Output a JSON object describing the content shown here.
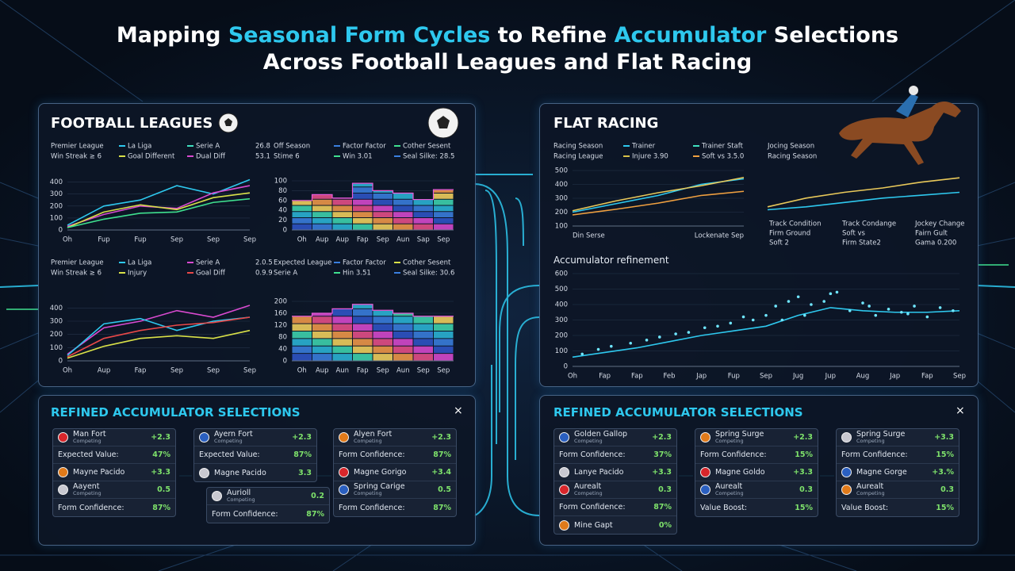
{
  "title": {
    "line1": [
      "Mapping ",
      "Seasonal Form Cycles",
      " to Refine ",
      "Accumulator",
      " Selections"
    ],
    "line2": "Across Football Leagues and Flat Racing"
  },
  "football": {
    "heading": "FOOTBALL LEAGUES",
    "charts": [
      {
        "type": "line",
        "key": [
          [
            {
              "text": "Premier League"
            },
            {
              "text": "La Liga",
              "color": "#2ec8ee"
            },
            {
              "text": "Serie A",
              "color": "#3fe0c0"
            },
            {
              "text": "26.8"
            }
          ],
          [
            {
              "text": "Win Streak ≥ 6"
            },
            {
              "text": "Goal Different",
              "color": "#d8e048"
            },
            {
              "text": "Dual Diff",
              "color": "#d94ad0"
            },
            {
              "text": "53.1"
            }
          ]
        ],
        "categories": [
          "Oh",
          "Fup",
          "Fup",
          "Sep",
          "Sep",
          "Sep"
        ],
        "ylim": [
          0,
          450
        ],
        "yticks": [
          0,
          100,
          200,
          300,
          400
        ],
        "series": [
          {
            "color": "#2ec8ee",
            "values": [
              40,
              200,
              250,
              370,
              300,
              420
            ]
          },
          {
            "color": "#d94ad0",
            "values": [
              30,
              130,
              200,
              180,
              310,
              370
            ]
          },
          {
            "color": "#d8e048",
            "values": [
              20,
              150,
              210,
              170,
              270,
              310
            ]
          },
          {
            "color": "#3fe08f",
            "values": [
              20,
              90,
              140,
              150,
              230,
              260
            ]
          }
        ]
      },
      {
        "type": "heatmap",
        "key": [
          [
            {
              "text": "Off Season"
            },
            {
              "text": "Factor Factor",
              "color": "#3a7fe0"
            },
            {
              "text": "Cother Sesent",
              "color": "#3fe08f"
            }
          ],
          [
            {
              "text": "Stime 6"
            },
            {
              "text": "Win 3.01",
              "color": "#3fe08f"
            },
            {
              "text": "Seal Silke: 28.5",
              "color": "#3a7fe0"
            }
          ]
        ],
        "categories": [
          "Oh",
          "Aup",
          "Aup",
          "Fap",
          "Sep",
          "Aun",
          "Sap",
          "Sep"
        ],
        "ylim": [
          0,
          100
        ],
        "yticks": [
          0,
          20,
          40,
          60,
          80,
          100
        ],
        "values": [
          60,
          72,
          65,
          95,
          80,
          75,
          62,
          82
        ]
      },
      {
        "type": "line",
        "key": [
          [
            {
              "text": "Premier League"
            },
            {
              "text": "La Liga",
              "color": "#2ec8ee"
            },
            {
              "text": "Serie A",
              "color": "#d94ad0"
            },
            {
              "text": "2.0.5"
            }
          ],
          [
            {
              "text": "Win Streak ≥ 6"
            },
            {
              "text": "Injury",
              "color": "#d8e048"
            },
            {
              "text": "Goal Diff",
              "color": "#e84848"
            },
            {
              "text": "0.9.9"
            }
          ]
        ],
        "categories": [
          "Oh",
          "Aup",
          "Fap",
          "Sep",
          "Sep",
          "Sep"
        ],
        "ylim": [
          0,
          450
        ],
        "yticks": [
          0,
          100,
          200,
          300,
          400
        ],
        "series": [
          {
            "color": "#d94ad0",
            "values": [
              50,
              250,
              300,
              380,
              330,
              420
            ]
          },
          {
            "color": "#2ec8ee",
            "values": [
              40,
              280,
              320,
              230,
              300,
              330
            ]
          },
          {
            "color": "#e84848",
            "values": [
              30,
              170,
              230,
              270,
              290,
              330
            ]
          },
          {
            "color": "#d8e048",
            "values": [
              20,
              110,
              170,
              190,
              170,
              230
            ]
          }
        ]
      },
      {
        "type": "heatmap",
        "key": [
          [
            {
              "text": "Expected League"
            },
            {
              "text": "Factor Factor",
              "color": "#3a7fe0"
            },
            {
              "text": "Cother Sesent",
              "color": "#d8e048"
            }
          ],
          [
            {
              "text": "Serie A"
            },
            {
              "text": "Hin 3.51",
              "color": "#3fe08f"
            },
            {
              "text": "Seal Silke: 30.6",
              "color": "#3a7fe0"
            }
          ]
        ],
        "categories": [
          "Oh",
          "Aup",
          "Aun",
          "Fap",
          "Sep",
          "Aun",
          "Sep",
          "Sep"
        ],
        "ylim": [
          0,
          200
        ],
        "yticks": [
          0,
          40,
          80,
          120,
          160,
          200
        ],
        "values": [
          150,
          160,
          175,
          190,
          170,
          160,
          150,
          150
        ]
      }
    ]
  },
  "racing": {
    "heading": "FLAT RACING",
    "charts": [
      {
        "type": "line",
        "key": [
          [
            {
              "text": "Racing Season"
            },
            {
              "text": "Trainer",
              "color": "#2ec8ee"
            },
            {
              "text": "Trainer Staft",
              "color": "#3fe0c0"
            }
          ],
          [
            {
              "text": "Racing League"
            },
            {
              "text": "Injure 3.90",
              "color": "#d8c048"
            },
            {
              "text": "Soft vs 3.5.0",
              "color": "#f0a040"
            }
          ]
        ],
        "categories": [
          "Din Serse",
          null,
          null,
          null,
          "Lockenate Sep"
        ],
        "ylim": [
          100,
          500
        ],
        "yticks": [
          100,
          200,
          300,
          400,
          500
        ],
        "series": [
          {
            "color": "#2ec8ee",
            "values": [
              200,
              260,
              320,
              400,
              440
            ]
          },
          {
            "color": "#e8c85a",
            "values": [
              210,
              280,
              340,
              390,
              450
            ]
          },
          {
            "color": "#f0a040",
            "values": [
              180,
              220,
              265,
              320,
              350
            ]
          }
        ]
      },
      {
        "type": "line",
        "key": [
          [
            {
              "text": "Jocing Season"
            }
          ],
          [
            {
              "text": "Racing Season"
            }
          ]
        ],
        "ylim": [
          100,
          400
        ],
        "series": [
          {
            "color": "#e8c85a",
            "values": [
              150,
              210,
              250,
              280,
              320,
              350
            ]
          },
          {
            "color": "#2ec8ee",
            "values": [
              130,
              150,
              180,
              210,
              230,
              250
            ]
          }
        ],
        "conditions": [
          [
            "Track Condition",
            "Track Condange",
            "Jockey Change"
          ],
          [
            "Firm Ground",
            "Soft vs",
            "Fairn Gult"
          ],
          [
            "Soft 2",
            "Firm State2",
            "Gama 0.200"
          ]
        ]
      }
    ],
    "refinement": {
      "label": "Accumulator refinement",
      "chart": {
        "type": "line",
        "categories": [
          "Oh",
          "Fap",
          "Fap",
          "Feb",
          "Jap",
          "Fup",
          "Sep",
          "Jug",
          "Jup",
          "Aug",
          "Jap",
          "Fap",
          "Sep"
        ],
        "ylim": [
          0,
          600
        ],
        "yticks": [
          0,
          100,
          200,
          300,
          400,
          500,
          600
        ],
        "series": [
          {
            "color": "#2ec8ee",
            "values": [
              60,
              90,
              120,
              160,
              200,
              230,
              260,
              330,
              380,
              360,
              350,
              350,
              360
            ]
          }
        ],
        "points": {
          "color": "#6fe6ff",
          "x": [
            0.3,
            0.8,
            1.2,
            1.8,
            2.3,
            2.7,
            3.2,
            3.6,
            4.1,
            4.5,
            4.9,
            5.3,
            5.6,
            6.0,
            6.3,
            6.7,
            7.0,
            7.4,
            7.8,
            8.2,
            8.6,
            9.0,
            9.4,
            9.8,
            10.2,
            10.6,
            11.0,
            11.4,
            11.8,
            6.5,
            7.2,
            8.0,
            9.2,
            10.4
          ],
          "values": [
            80,
            110,
            130,
            150,
            170,
            190,
            210,
            220,
            250,
            260,
            280,
            320,
            300,
            330,
            390,
            420,
            450,
            400,
            420,
            480,
            360,
            410,
            330,
            370,
            350,
            390,
            320,
            380,
            360,
            300,
            330,
            470,
            390,
            340
          ]
        }
      }
    }
  },
  "selections": [
    {
      "heading": "REFINED ACCUMULATOR SELECTIONS",
      "close": "×",
      "cards": [
        {
          "rows": [
            {
              "name": "Man Fort",
              "sub": "Competing",
              "odds": "+2.3"
            },
            {
              "label": "Expected Value:",
              "value": "47%"
            },
            {
              "name": "Mayne Pacido",
              "odds": "+3.3"
            },
            {
              "name": "Aayent",
              "sub": "Competing",
              "odds": "0.5"
            },
            {
              "label": "Form Confidence:",
              "value": "87%"
            }
          ]
        },
        {
          "rows": [
            {
              "name": "Ayern Fort",
              "sub": "Competing",
              "odds": "+2.3"
            },
            {
              "label": "Expected Value:",
              "value": "87%"
            },
            {
              "name": "Magne Pacido",
              "odds": "3.3"
            }
          ]
        },
        {
          "rows": [
            {
              "name": "Alyen Fort",
              "sub": "Competing",
              "odds": "+2.3"
            },
            {
              "label": "Form Confidence:",
              "value": "87%"
            },
            {
              "name": "Magne Gorigo",
              "odds": "+3.4"
            },
            {
              "name": "Spring Carige",
              "sub": "Competing",
              "odds": "0.5"
            },
            {
              "label": "Form Confidence:",
              "value": "87%"
            }
          ]
        },
        {
          "rows": [
            {
              "name": "Aurioll",
              "sub": "Competing",
              "odds": "0.2"
            },
            {
              "label": "Form Confidence:",
              "value": "87%"
            }
          ]
        }
      ]
    },
    {
      "heading": "REFINED ACCUMULATOR SELECTIONS",
      "close": "×",
      "cards": [
        {
          "rows": [
            {
              "name": "Golden Gallop",
              "sub": "Competing",
              "odds": "+2.3"
            },
            {
              "label": "Form Confidence:",
              "value": "37%"
            },
            {
              "name": "Lanye Pacido",
              "odds": "+3.3"
            },
            {
              "name": "Aurealt",
              "sub": "Competing",
              "odds": "0.3"
            },
            {
              "label": "Form Confidence:",
              "value": "87%"
            },
            {
              "name": "Mine Gapt",
              "odds": "0%"
            }
          ]
        },
        {
          "rows": [
            {
              "name": "Spring Surge",
              "sub": "Competing",
              "odds": "+2.3"
            },
            {
              "label": "Form Confidence:",
              "value": "15%"
            },
            {
              "name": "Magne Goldo",
              "odds": "+3.3"
            },
            {
              "name": "Aurealt",
              "sub": "Competing",
              "odds": "0.3"
            },
            {
              "label": "Value Boost:",
              "value": "15%"
            }
          ]
        },
        {
          "rows": [
            {
              "name": "Spring Surge",
              "sub": "Competing",
              "odds": "+3.3"
            },
            {
              "label": "Form Confidence:",
              "value": "15%"
            },
            {
              "name": "Magne Gorge",
              "odds": "+3.%"
            },
            {
              "name": "Aurealt",
              "sub": "Competing",
              "odds": "0.3"
            },
            {
              "label": "Value Boost:",
              "value": "15%"
            }
          ]
        }
      ]
    }
  ]
}
